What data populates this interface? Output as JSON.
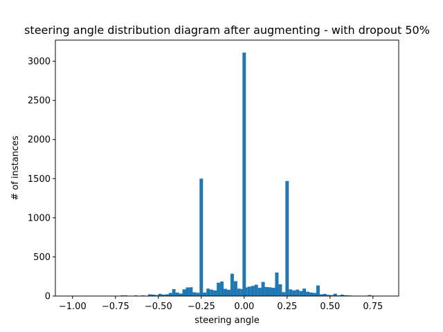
{
  "chart_data": {
    "type": "bar",
    "title": "steering angle distribution diagram after augmenting - with dropout 50%",
    "xlabel": "steering angle",
    "ylabel": "# of instances",
    "xlim": [
      -1.1,
      0.9
    ],
    "ylim": [
      0,
      3270
    ],
    "x_ticks": [
      -1.0,
      -0.75,
      -0.5,
      -0.25,
      0.0,
      0.25,
      0.5,
      0.75
    ],
    "x_tick_labels": [
      "−1.00",
      "−0.75",
      "−0.50",
      "−0.25",
      "0.00",
      "0.25",
      "0.50",
      "0.75"
    ],
    "y_ticks": [
      0,
      500,
      1000,
      1500,
      2000,
      2500,
      3000
    ],
    "y_tick_labels": [
      "0",
      "500",
      "1000",
      "1500",
      "2000",
      "2500",
      "3000"
    ],
    "bar_width": 0.02,
    "bar_color": "#1f77b4",
    "grid": false,
    "bars": [
      {
        "x": -0.71,
        "y": 8
      },
      {
        "x": -0.69,
        "y": 8
      },
      {
        "x": -0.63,
        "y": 8
      },
      {
        "x": -0.59,
        "y": 8
      },
      {
        "x": -0.55,
        "y": 22
      },
      {
        "x": -0.53,
        "y": 18
      },
      {
        "x": -0.51,
        "y": 12
      },
      {
        "x": -0.49,
        "y": 28
      },
      {
        "x": -0.47,
        "y": 18
      },
      {
        "x": -0.45,
        "y": 22
      },
      {
        "x": -0.43,
        "y": 40
      },
      {
        "x": -0.41,
        "y": 88
      },
      {
        "x": -0.39,
        "y": 45
      },
      {
        "x": -0.37,
        "y": 32
      },
      {
        "x": -0.35,
        "y": 85
      },
      {
        "x": -0.33,
        "y": 110
      },
      {
        "x": -0.31,
        "y": 112
      },
      {
        "x": -0.29,
        "y": 48
      },
      {
        "x": -0.27,
        "y": 42
      },
      {
        "x": -0.25,
        "y": 1500
      },
      {
        "x": -0.23,
        "y": 45
      },
      {
        "x": -0.21,
        "y": 95
      },
      {
        "x": -0.19,
        "y": 82
      },
      {
        "x": -0.17,
        "y": 72
      },
      {
        "x": -0.15,
        "y": 170
      },
      {
        "x": -0.13,
        "y": 185
      },
      {
        "x": -0.11,
        "y": 92
      },
      {
        "x": -0.09,
        "y": 80
      },
      {
        "x": -0.07,
        "y": 285
      },
      {
        "x": -0.05,
        "y": 190
      },
      {
        "x": -0.03,
        "y": 95
      },
      {
        "x": -0.01,
        "y": 88
      },
      {
        "x": 0.0,
        "y": 3110
      },
      {
        "x": 0.01,
        "y": 110
      },
      {
        "x": 0.03,
        "y": 120
      },
      {
        "x": 0.05,
        "y": 130
      },
      {
        "x": 0.07,
        "y": 145
      },
      {
        "x": 0.09,
        "y": 105
      },
      {
        "x": 0.11,
        "y": 180
      },
      {
        "x": 0.13,
        "y": 115
      },
      {
        "x": 0.15,
        "y": 112
      },
      {
        "x": 0.17,
        "y": 105
      },
      {
        "x": 0.19,
        "y": 300
      },
      {
        "x": 0.21,
        "y": 150
      },
      {
        "x": 0.23,
        "y": 50
      },
      {
        "x": 0.25,
        "y": 1470
      },
      {
        "x": 0.27,
        "y": 85
      },
      {
        "x": 0.29,
        "y": 72
      },
      {
        "x": 0.31,
        "y": 82
      },
      {
        "x": 0.33,
        "y": 65
      },
      {
        "x": 0.35,
        "y": 95
      },
      {
        "x": 0.37,
        "y": 55
      },
      {
        "x": 0.39,
        "y": 45
      },
      {
        "x": 0.41,
        "y": 40
      },
      {
        "x": 0.43,
        "y": 135
      },
      {
        "x": 0.45,
        "y": 22
      },
      {
        "x": 0.47,
        "y": 28
      },
      {
        "x": 0.49,
        "y": 15
      },
      {
        "x": 0.51,
        "y": 12
      },
      {
        "x": 0.53,
        "y": 30
      },
      {
        "x": 0.55,
        "y": 8
      },
      {
        "x": 0.57,
        "y": 18
      },
      {
        "x": 0.59,
        "y": 10
      },
      {
        "x": 0.61,
        "y": 8
      },
      {
        "x": 0.63,
        "y": 5
      },
      {
        "x": 0.73,
        "y": 12
      },
      {
        "x": 0.75,
        "y": 5
      }
    ]
  }
}
